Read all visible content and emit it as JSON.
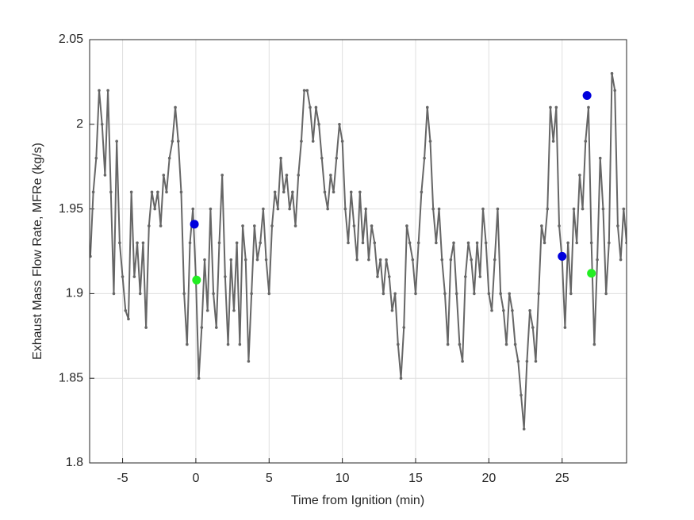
{
  "chart_data": {
    "type": "line",
    "xlabel": "Time from Ignition (min)",
    "ylabel": "Exhaust Mass Flow Rate, MFRe (kg/s)",
    "xlim": [
      -7.25,
      29.4
    ],
    "ylim": [
      1.8,
      2.05
    ],
    "xticks": [
      -5,
      0,
      5,
      10,
      15,
      20,
      25
    ],
    "yticks": [
      1.8,
      1.85,
      1.9,
      1.95,
      2,
      2.05
    ],
    "grid": true,
    "series": [
      {
        "color": "#666666",
        "mode": "lines+markers",
        "x": [
          -7.2,
          -7.0,
          -6.8,
          -6.6,
          -6.4,
          -6.2,
          -6.0,
          -5.8,
          -5.6,
          -5.4,
          -5.2,
          -5.0,
          -4.8,
          -4.6,
          -4.4,
          -4.2,
          -4.0,
          -3.8,
          -3.6,
          -3.4,
          -3.2,
          -3.0,
          -2.8,
          -2.6,
          -2.4,
          -2.2,
          -2.0,
          -1.8,
          -1.6,
          -1.4,
          -1.2,
          -1.0,
          -0.8,
          -0.6,
          -0.4,
          -0.2,
          0.0,
          0.2,
          0.4,
          0.6,
          0.8,
          1.0,
          1.2,
          1.4,
          1.6,
          1.8,
          2.0,
          2.2,
          2.4,
          2.6,
          2.8,
          3.0,
          3.2,
          3.4,
          3.6,
          3.8,
          4.0,
          4.2,
          4.4,
          4.6,
          4.8,
          5.0,
          5.2,
          5.4,
          5.6,
          5.8,
          6.0,
          6.2,
          6.4,
          6.6,
          6.8,
          7.0,
          7.2,
          7.4,
          7.6,
          7.8,
          8.0,
          8.2,
          8.4,
          8.6,
          8.8,
          9.0,
          9.2,
          9.4,
          9.6,
          9.8,
          10.0,
          10.2,
          10.4,
          10.6,
          10.8,
          11.0,
          11.2,
          11.4,
          11.6,
          11.8,
          12.0,
          12.2,
          12.4,
          12.6,
          12.8,
          13.0,
          13.2,
          13.4,
          13.6,
          13.8,
          14.0,
          14.2,
          14.4,
          14.6,
          14.8,
          15.0,
          15.2,
          15.4,
          15.6,
          15.8,
          16.0,
          16.2,
          16.4,
          16.6,
          16.8,
          17.0,
          17.2,
          17.4,
          17.6,
          17.8,
          18.0,
          18.2,
          18.4,
          18.6,
          18.8,
          19.0,
          19.2,
          19.4,
          19.6,
          19.8,
          20.0,
          20.2,
          20.4,
          20.6,
          20.8,
          21.0,
          21.2,
          21.4,
          21.6,
          21.8,
          22.0,
          22.2,
          22.4,
          22.6,
          22.8,
          23.0,
          23.2,
          23.4,
          23.6,
          23.8,
          24.0,
          24.2,
          24.4,
          24.6,
          24.8,
          25.0,
          25.2,
          25.4,
          25.6,
          25.8,
          26.0,
          26.2,
          26.4,
          26.6,
          26.8,
          27.0,
          27.2,
          27.4,
          27.6,
          27.8,
          28.0,
          28.2,
          28.4,
          28.6,
          28.8,
          29.0,
          29.2,
          29.4
        ],
        "values": [
          1.922,
          1.96,
          1.98,
          2.02,
          2.0,
          1.97,
          2.02,
          1.96,
          1.9,
          1.99,
          1.93,
          1.91,
          1.89,
          1.885,
          1.96,
          1.91,
          1.93,
          1.9,
          1.93,
          1.88,
          1.94,
          1.96,
          1.95,
          1.96,
          1.94,
          1.97,
          1.96,
          1.98,
          1.99,
          2.01,
          1.99,
          1.96,
          1.9,
          1.87,
          1.93,
          1.95,
          1.91,
          1.85,
          1.88,
          1.92,
          1.89,
          1.95,
          1.9,
          1.88,
          1.93,
          1.97,
          1.91,
          1.87,
          1.92,
          1.89,
          1.93,
          1.87,
          1.94,
          1.92,
          1.86,
          1.9,
          1.94,
          1.92,
          1.93,
          1.95,
          1.92,
          1.9,
          1.94,
          1.96,
          1.95,
          1.98,
          1.96,
          1.97,
          1.95,
          1.96,
          1.94,
          1.97,
          1.99,
          2.02,
          2.02,
          2.01,
          1.99,
          2.01,
          2.0,
          1.98,
          1.96,
          1.95,
          1.97,
          1.96,
          1.98,
          2.0,
          1.99,
          1.95,
          1.93,
          1.96,
          1.94,
          1.92,
          1.96,
          1.93,
          1.95,
          1.92,
          1.94,
          1.93,
          1.91,
          1.92,
          1.9,
          1.92,
          1.91,
          1.89,
          1.9,
          1.87,
          1.85,
          1.88,
          1.94,
          1.93,
          1.92,
          1.9,
          1.93,
          1.96,
          1.98,
          2.01,
          1.99,
          1.95,
          1.93,
          1.95,
          1.92,
          1.9,
          1.87,
          1.92,
          1.93,
          1.9,
          1.87,
          1.86,
          1.91,
          1.93,
          1.92,
          1.9,
          1.93,
          1.91,
          1.95,
          1.93,
          1.9,
          1.89,
          1.92,
          1.95,
          1.9,
          1.89,
          1.87,
          1.9,
          1.89,
          1.87,
          1.86,
          1.84,
          1.82,
          1.86,
          1.89,
          1.88,
          1.86,
          1.9,
          1.94,
          1.93,
          1.95,
          2.01,
          1.99,
          2.01,
          1.94,
          1.92,
          1.88,
          1.93,
          1.9,
          1.95,
          1.93,
          1.97,
          1.95,
          1.99,
          2.01,
          1.93,
          1.87,
          1.92,
          1.98,
          1.95,
          1.9,
          1.93,
          2.03,
          2.02,
          1.94,
          1.92,
          1.95,
          1.93
        ]
      },
      {
        "color": "#0000dd",
        "mode": "markers",
        "x": [
          -0.1,
          25.0,
          26.7
        ],
        "values": [
          1.941,
          1.922,
          2.017
        ]
      },
      {
        "color": "#22ee22",
        "mode": "markers",
        "x": [
          0.05,
          27.0
        ],
        "values": [
          1.908,
          1.912
        ]
      }
    ]
  }
}
